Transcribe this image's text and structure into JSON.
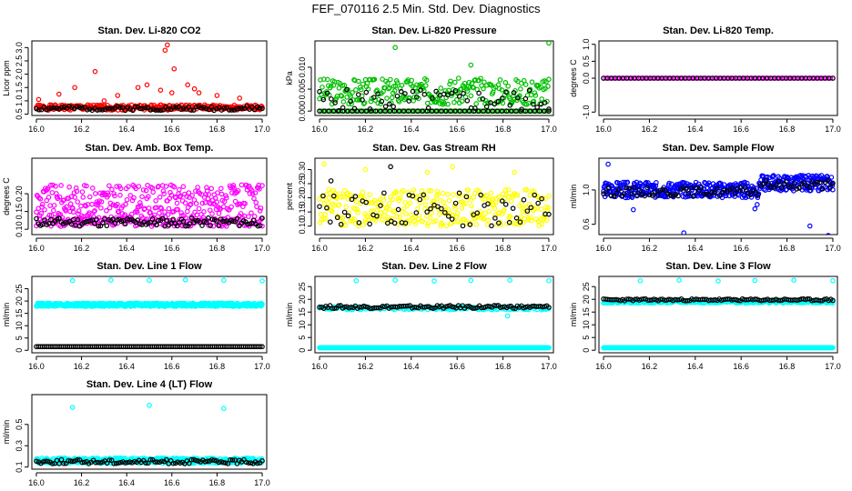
{
  "page_title": "FEF_070116  2.5 Min. Std. Dev. Diagnostics",
  "chart_data": [
    {
      "id": "co2",
      "type": "scatter",
      "title": "Stan. Dev. Li-820 CO2",
      "ylabel": "Licor ppm",
      "xlim": [
        15.98,
        17.02
      ],
      "ylim": [
        0.45,
        3.25
      ],
      "xticks": [
        16.0,
        16.2,
        16.4,
        16.6,
        16.8,
        17.0
      ],
      "yticks": [
        0.5,
        1.0,
        1.5,
        2.0,
        2.5,
        3.0
      ],
      "ytick_labels": [
        "0.5",
        "1.0",
        "1.5",
        "2.0",
        "2.5",
        "3.0"
      ],
      "series": [
        {
          "name": "red",
          "color": "#ff0000",
          "kind": "band",
          "base": 0.75,
          "spread": 0.1,
          "n": 300,
          "seed": 1
        },
        {
          "name": "red-outliers",
          "color": "#ff0000",
          "kind": "points",
          "x": [
            16.01,
            16.1,
            16.17,
            16.26,
            16.3,
            16.36,
            16.45,
            16.49,
            16.55,
            16.57,
            16.58,
            16.6,
            16.61,
            16.67,
            16.7,
            16.72,
            16.8,
            16.9
          ],
          "y": [
            1.05,
            1.25,
            1.5,
            2.1,
            1.0,
            1.2,
            1.5,
            1.6,
            1.4,
            2.9,
            3.1,
            1.3,
            2.2,
            1.6,
            1.45,
            1.3,
            1.2,
            1.1
          ]
        },
        {
          "name": "black",
          "color": "#000000",
          "kind": "band",
          "base": 0.72,
          "spread": 0.08,
          "n": 90,
          "seed": 2
        }
      ]
    },
    {
      "id": "pressure",
      "type": "scatter",
      "title": "Stan. Dev. Li-820 Pressure",
      "ylabel": "kPa",
      "xlim": [
        15.98,
        17.02
      ],
      "ylim": [
        -0.001,
        0.016
      ],
      "xticks": [
        16.0,
        16.2,
        16.4,
        16.6,
        16.8,
        17.0
      ],
      "yticks": [
        0.0,
        0.005,
        0.01
      ],
      "ytick_labels": [
        "0.000",
        "0.005",
        "0.010"
      ],
      "series": [
        {
          "name": "green",
          "color": "#00c000",
          "kind": "band",
          "base": 0.0045,
          "spread": 0.003,
          "n": 260,
          "seed": 3
        },
        {
          "name": "green-zero",
          "color": "#00c000",
          "kind": "band",
          "base": 0.0,
          "spread": 0.0,
          "n": 120,
          "seed": 4
        },
        {
          "name": "green-outliers",
          "color": "#00c000",
          "kind": "points",
          "x": [
            16.33,
            16.66,
            17.0
          ],
          "y": [
            0.0145,
            0.0105,
            0.0155
          ]
        },
        {
          "name": "black",
          "color": "#000000",
          "kind": "band",
          "base": 0.0025,
          "spread": 0.0025,
          "n": 60,
          "seed": 5
        },
        {
          "name": "black-zero",
          "color": "#000000",
          "kind": "band",
          "base": 0.0,
          "spread": 0.0,
          "n": 50,
          "seed": 6
        }
      ]
    },
    {
      "id": "temp",
      "type": "scatter",
      "title": "Stan. Dev. Li-820 Temp.",
      "ylabel": "degrees C",
      "xlim": [
        15.98,
        17.02
      ],
      "ylim": [
        -1.1,
        1.1
      ],
      "xticks": [
        16.0,
        16.2,
        16.4,
        16.6,
        16.8,
        17.0
      ],
      "yticks": [
        -1.0,
        0.0,
        0.5,
        1.0
      ],
      "ytick_labels": [
        "-1.0",
        "0.0",
        "0.5",
        "1.0"
      ],
      "series": [
        {
          "name": "magenta",
          "color": "#ff00ff",
          "kind": "band",
          "base": 0.0,
          "spread": 0.0,
          "n": 100,
          "seed": 7
        },
        {
          "name": "black",
          "color": "#000000",
          "kind": "band",
          "base": 0.0,
          "spread": 0.0,
          "n": 60,
          "seed": 8
        }
      ]
    },
    {
      "id": "boxtemp",
      "type": "scatter",
      "title": "Stan. Dev. Amb. Box Temp.",
      "ylabel": "degrees C",
      "xlim": [
        15.98,
        17.02
      ],
      "ylim": [
        0.085,
        0.3
      ],
      "xticks": [
        16.0,
        16.2,
        16.4,
        16.6,
        16.8,
        17.0
      ],
      "yticks": [
        0.1,
        0.15,
        0.2
      ],
      "ytick_labels": [
        "0.10",
        "0.15",
        "0.20"
      ],
      "series": [
        {
          "name": "magenta",
          "color": "#ff00ff",
          "kind": "band",
          "base": 0.175,
          "spread": 0.05,
          "n": 330,
          "seed": 9
        },
        {
          "name": "magenta-low",
          "color": "#ff00ff",
          "kind": "band",
          "base": 0.12,
          "spread": 0.012,
          "n": 140,
          "seed": 10
        },
        {
          "name": "black",
          "color": "#000000",
          "kind": "band",
          "base": 0.12,
          "spread": 0.012,
          "n": 110,
          "seed": 11
        }
      ]
    },
    {
      "id": "rh",
      "type": "scatter",
      "title": "Stan. Dev. Gas Stream RH",
      "ylabel": "percent",
      "xlim": [
        15.98,
        17.02
      ],
      "ylim": [
        0.07,
        0.34
      ],
      "xticks": [
        16.0,
        16.2,
        16.4,
        16.6,
        16.8,
        17.0
      ],
      "yticks": [
        0.1,
        0.15,
        0.2,
        0.25,
        0.3
      ],
      "ytick_labels": [
        "0.10",
        "0.15",
        "0.20",
        "0.25",
        "0.30"
      ],
      "series": [
        {
          "name": "yellow",
          "color": "#ffff00",
          "kind": "band",
          "base": 0.165,
          "spread": 0.065,
          "n": 330,
          "seed": 12
        },
        {
          "name": "yellow-outliers",
          "color": "#ffff00",
          "kind": "points",
          "x": [
            16.02,
            16.2,
            16.47,
            16.58,
            16.85
          ],
          "y": [
            0.32,
            0.3,
            0.29,
            0.31,
            0.29
          ]
        },
        {
          "name": "black",
          "color": "#000000",
          "kind": "band",
          "base": 0.16,
          "spread": 0.06,
          "n": 65,
          "seed": 13
        },
        {
          "name": "black-outliers",
          "color": "#000000",
          "kind": "points",
          "x": [
            16.31,
            16.05
          ],
          "y": [
            0.31,
            0.26
          ]
        }
      ]
    },
    {
      "id": "sampleflow",
      "type": "scatter",
      "title": "Stan. Dev. Sample Flow",
      "ylabel": "ml/min",
      "xlim": [
        15.98,
        17.02
      ],
      "ylim": [
        0.48,
        1.37
      ],
      "xticks": [
        16.0,
        16.2,
        16.4,
        16.6,
        16.8,
        17.0
      ],
      "yticks": [
        0.6,
        1.0
      ],
      "ytick_labels": [
        "0.6",
        "1.0"
      ],
      "series": [
        {
          "name": "blue",
          "color": "#0000ff",
          "kind": "band",
          "base": 1.0,
          "spread": 0.09,
          "n": 480,
          "seed": 14,
          "shift": {
            "from": 16.68,
            "delta": 0.08
          }
        },
        {
          "name": "blue-outliers",
          "color": "#0000ff",
          "kind": "points",
          "x": [
            16.02,
            16.13,
            16.35,
            16.66,
            16.67,
            16.9,
            16.98
          ],
          "y": [
            1.3,
            0.77,
            0.5,
            0.78,
            0.83,
            0.58,
            0.47
          ]
        },
        {
          "name": "black",
          "color": "#000000",
          "kind": "band",
          "base": 0.98,
          "spread": 0.05,
          "n": 90,
          "seed": 15,
          "shift": {
            "from": 16.68,
            "delta": 0.08
          }
        }
      ]
    },
    {
      "id": "line1",
      "type": "scatter",
      "title": "Stan. Dev. Line 1 Flow",
      "ylabel": "ml/min",
      "xlim": [
        15.98,
        17.02
      ],
      "ylim": [
        -1,
        30
      ],
      "xticks": [
        16.0,
        16.2,
        16.4,
        16.6,
        16.8,
        17.0
      ],
      "yticks": [
        0,
        5,
        10,
        15,
        20,
        25
      ],
      "ytick_labels": [
        "0",
        "5",
        "10",
        "15",
        "20",
        "25"
      ],
      "series": [
        {
          "name": "cyan",
          "color": "#00ffff",
          "kind": "band",
          "base": 18.5,
          "spread": 0.7,
          "n": 520,
          "seed": 16
        },
        {
          "name": "cyan-outliers",
          "color": "#00ffff",
          "kind": "points",
          "x": [
            16.16,
            16.33,
            16.5,
            16.66,
            16.83,
            17.0
          ],
          "y": [
            28.3,
            28.5,
            28.4,
            28.6,
            28.4,
            28.2
          ]
        },
        {
          "name": "black",
          "color": "#000000",
          "kind": "band",
          "base": 1.5,
          "spread": 0.0,
          "n": 110,
          "seed": 17
        }
      ]
    },
    {
      "id": "line2",
      "type": "scatter",
      "title": "Stan. Dev. Line 2 Flow",
      "ylabel": "ml/min",
      "xlim": [
        15.98,
        17.02
      ],
      "ylim": [
        -1,
        29
      ],
      "xticks": [
        16.0,
        16.2,
        16.4,
        16.6,
        16.8,
        17.0
      ],
      "yticks": [
        0,
        5,
        10,
        15,
        20,
        25
      ],
      "ytick_labels": [
        "0",
        "5",
        "10",
        "15",
        "20",
        "25"
      ],
      "series": [
        {
          "name": "cyan-low",
          "color": "#00ffff",
          "kind": "band",
          "base": 1.0,
          "spread": 0.0,
          "n": 520,
          "seed": 18
        },
        {
          "name": "cyan",
          "color": "#00ffff",
          "kind": "band",
          "base": 16.5,
          "spread": 0.6,
          "n": 160,
          "seed": 19
        },
        {
          "name": "cyan-outliers",
          "color": "#00ffff",
          "kind": "points",
          "x": [
            16.16,
            16.33,
            16.5,
            16.66,
            16.83,
            17.0,
            16.82
          ],
          "y": [
            27.3,
            27.5,
            27.2,
            27.4,
            27.5,
            27.3,
            13.5
          ]
        },
        {
          "name": "black",
          "color": "#000000",
          "kind": "band",
          "base": 17.0,
          "spread": 0.6,
          "n": 110,
          "seed": 20
        }
      ]
    },
    {
      "id": "line3",
      "type": "scatter",
      "title": "Stan. Dev. Line 3 Flow",
      "ylabel": "ml/min",
      "xlim": [
        15.98,
        17.02
      ],
      "ylim": [
        -1,
        29
      ],
      "xticks": [
        16.0,
        16.2,
        16.4,
        16.6,
        16.8,
        17.0
      ],
      "yticks": [
        0,
        5,
        10,
        15,
        20,
        25
      ],
      "ytick_labels": [
        "0",
        "5",
        "10",
        "15",
        "20",
        "25"
      ],
      "series": [
        {
          "name": "cyan-low",
          "color": "#00ffff",
          "kind": "band",
          "base": 1.0,
          "spread": 0.0,
          "n": 520,
          "seed": 21
        },
        {
          "name": "cyan",
          "color": "#00ffff",
          "kind": "band",
          "base": 19.0,
          "spread": 0.5,
          "n": 260,
          "seed": 22
        },
        {
          "name": "cyan-outliers",
          "color": "#00ffff",
          "kind": "points",
          "x": [
            16.16,
            16.33,
            16.5,
            16.66,
            16.83,
            17.0
          ],
          "y": [
            27.3,
            27.5,
            27.2,
            27.4,
            27.5,
            27.3
          ]
        },
        {
          "name": "black",
          "color": "#000000",
          "kind": "band",
          "base": 19.8,
          "spread": 0.4,
          "n": 110,
          "seed": 23
        }
      ]
    },
    {
      "id": "line4",
      "type": "scatter",
      "title": "Stan. Dev. Line 4 (LT) Flow",
      "ylabel": "ml/min",
      "xlim": [
        15.98,
        17.02
      ],
      "ylim": [
        0.08,
        0.78
      ],
      "xticks": [
        16.0,
        16.2,
        16.4,
        16.6,
        16.8,
        17.0
      ],
      "yticks": [
        0.1,
        0.3,
        0.5
      ],
      "ytick_labels": [
        "0.1",
        "0.3",
        "0.5"
      ],
      "series": [
        {
          "name": "cyan",
          "color": "#00ffff",
          "kind": "band",
          "base": 0.16,
          "spread": 0.025,
          "n": 480,
          "seed": 24
        },
        {
          "name": "cyan-outliers",
          "color": "#00ffff",
          "kind": "points",
          "x": [
            16.16,
            16.5,
            16.83
          ],
          "y": [
            0.66,
            0.68,
            0.65
          ]
        },
        {
          "name": "black",
          "color": "#000000",
          "kind": "band",
          "base": 0.15,
          "spread": 0.02,
          "n": 100,
          "seed": 25
        }
      ]
    }
  ]
}
